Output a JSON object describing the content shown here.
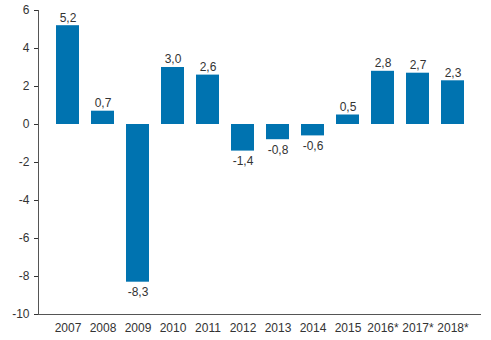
{
  "chart_data": {
    "type": "bar",
    "categories": [
      "2007",
      "2008",
      "2009",
      "2010",
      "2011",
      "2012",
      "2013",
      "2014",
      "2015",
      "2016*",
      "2017*",
      "2018*"
    ],
    "values": [
      5.2,
      0.7,
      -8.3,
      3.0,
      2.6,
      -1.4,
      -0.8,
      -0.6,
      0.5,
      2.8,
      2.7,
      2.3
    ],
    "value_labels": [
      "5,2",
      "0,7",
      "-8,3",
      "3,0",
      "2,6",
      "-1,4",
      "-0,8",
      "-0,6",
      "0,5",
      "2,8",
      "2,7",
      "2,3"
    ],
    "color": "#0073b0",
    "ylim": [
      -10,
      6
    ],
    "yticks": [
      -10,
      -8,
      -6,
      -4,
      -2,
      0,
      2,
      4,
      6
    ],
    "grid": false,
    "data_labels": true
  }
}
